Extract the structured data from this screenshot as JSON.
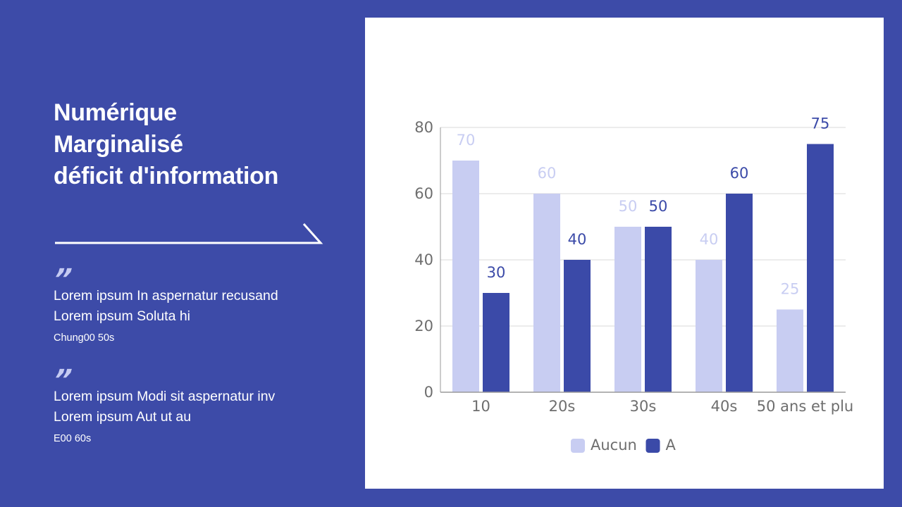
{
  "slide": {
    "title_lines": [
      "Numérique",
      "Marginalisé",
      "déficit d'information"
    ],
    "quotes": [
      {
        "mark": "”",
        "lines": [
          "Lorem ipsum In aspernatur recusand",
          "Lorem ipsum Soluta hi"
        ],
        "author": "Chung00 50s"
      },
      {
        "mark": "”",
        "lines": [
          "Lorem ipsum Modi sit aspernatur inv",
          "Lorem ipsum Aut ut au"
        ],
        "author": "E00 60s"
      }
    ]
  },
  "colors": {
    "background": "#3d4ba8",
    "panel": "#ffffff",
    "series_light": "#c8cdf2",
    "series_dark": "#3b4aa8",
    "axis_text": "#6e6e6e",
    "grid": "#d9d9d9"
  },
  "chart_data": {
    "type": "bar",
    "title": "",
    "xlabel": "",
    "ylabel": "",
    "categories": [
      "10",
      "20s",
      "30s",
      "40s",
      "50 ans et plu"
    ],
    "series": [
      {
        "name": "Aucun",
        "values": [
          70,
          60,
          50,
          40,
          25
        ],
        "color": "#c8cdf2"
      },
      {
        "name": "A",
        "values": [
          30,
          40,
          50,
          60,
          75
        ],
        "color": "#3b4aa8"
      }
    ],
    "ylim": [
      0,
      80
    ],
    "yticks": [
      0,
      20,
      40,
      60,
      80
    ],
    "grid": true,
    "data_labels": true,
    "legend_position": "bottom"
  }
}
